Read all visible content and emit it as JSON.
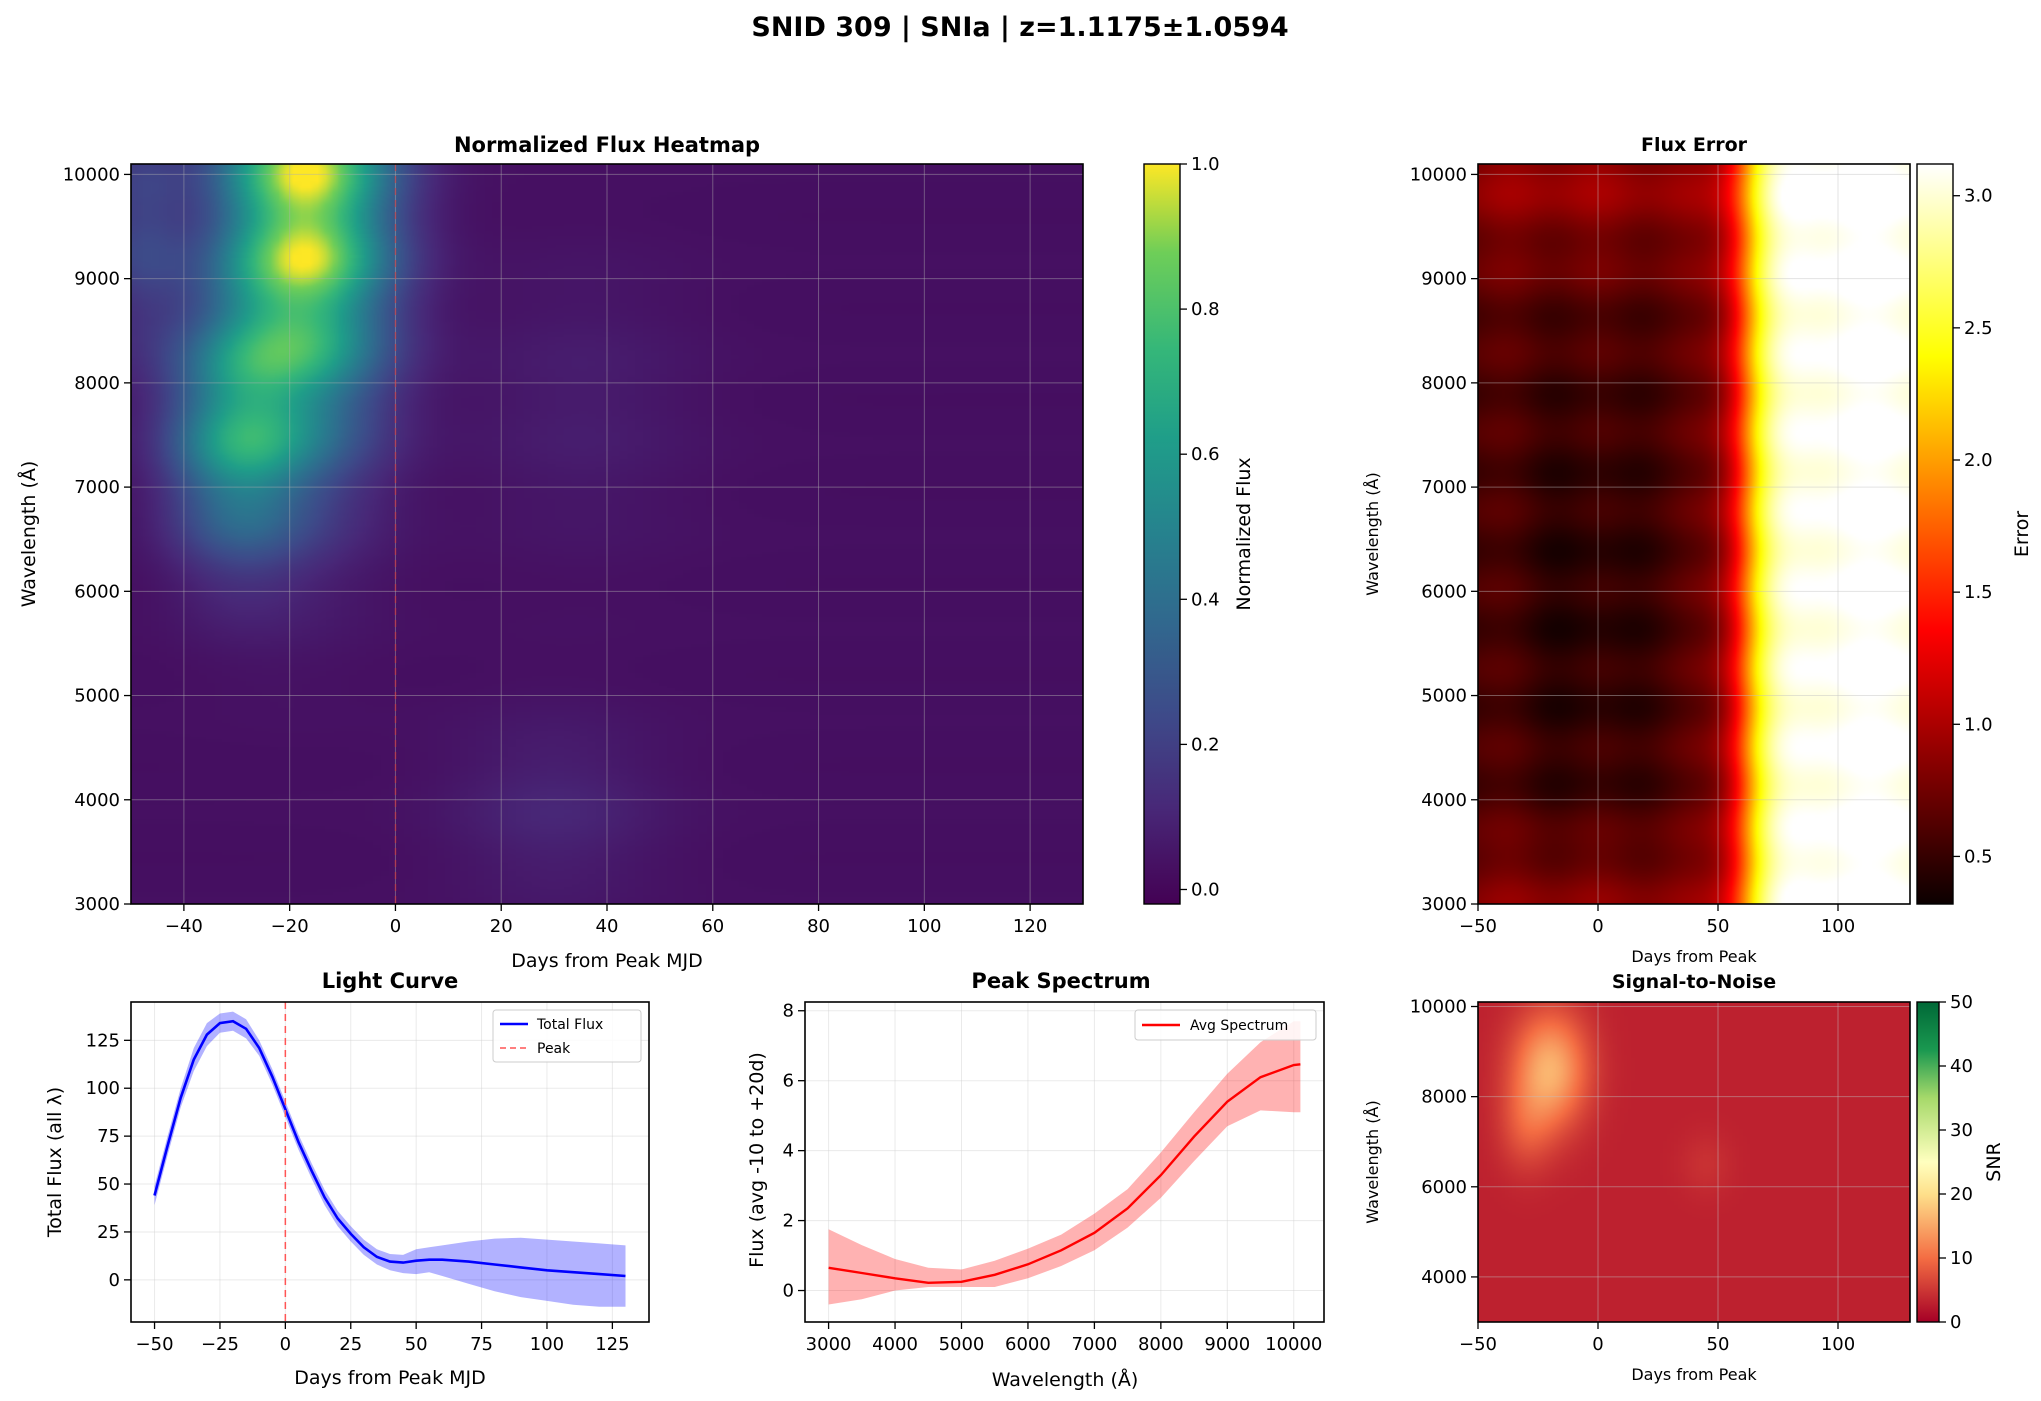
{
  "figure": {
    "suptitle": "SNID 309 | SNIa | z=1.1175±1.0594"
  },
  "chart_data": [
    {
      "id": "heatmap",
      "type": "heatmap",
      "title": "Normalized Flux Heatmap",
      "xlabel": "Days from Peak MJD",
      "ylabel": "Wavelength (Å)",
      "xlim": [
        -50,
        130
      ],
      "ylim": [
        3000,
        10100
      ],
      "xticks": [
        "−40",
        "−20",
        "0",
        "20",
        "40",
        "60",
        "80",
        "100",
        "120"
      ],
      "yticks": [
        "3000",
        "4000",
        "5000",
        "6000",
        "7000",
        "8000",
        "9000",
        "10000"
      ],
      "colormap": "viridis",
      "colorbar": {
        "label": "Normalized Flux",
        "range": [
          -0.02,
          1.0
        ],
        "ticks": [
          "0.0",
          "0.2",
          "0.4",
          "0.6",
          "0.8",
          "1.0"
        ]
      },
      "peak_line_x": 0,
      "grid": true,
      "description_values": {
        "max_day": -18,
        "max_wavelength": 9600,
        "max_value": 1.0
      }
    },
    {
      "id": "error",
      "type": "heatmap",
      "title": "Flux Error",
      "xlabel": "Days from Peak",
      "ylabel": "Wavelength (Å)",
      "xlim": [
        -50,
        130
      ],
      "ylim": [
        3000,
        10100
      ],
      "xticks": [
        "−50",
        "0",
        "50",
        "100"
      ],
      "yticks": [
        "3000",
        "4000",
        "5000",
        "6000",
        "7000",
        "8000",
        "9000",
        "10000"
      ],
      "colormap": "hot",
      "colorbar": {
        "label": "Error",
        "range": [
          0.32,
          3.12
        ],
        "ticks": [
          "0.5",
          "1.0",
          "1.5",
          "2.0",
          "2.5",
          "3.0"
        ]
      },
      "grid": true
    },
    {
      "id": "lightcurve",
      "type": "line",
      "title": "Light Curve",
      "xlabel": "Days from Peak MJD",
      "ylabel": "Total Flux (all λ)",
      "xlim": [
        -59,
        139
      ],
      "ylim": [
        -22,
        145
      ],
      "xticks": [
        "−50",
        "−25",
        "0",
        "25",
        "50",
        "75",
        "100",
        "125"
      ],
      "yticks": [
        "0",
        "25",
        "50",
        "75",
        "100",
        "125"
      ],
      "legend_position": "upper right",
      "grid": true,
      "series": [
        {
          "name": "Total Flux",
          "color": "#0000ff",
          "x": [
            -50,
            -45,
            -40,
            -35,
            -30,
            -25,
            -20,
            -15,
            -10,
            -5,
            0,
            5,
            10,
            15,
            20,
            25,
            30,
            35,
            40,
            45,
            50,
            55,
            60,
            70,
            80,
            90,
            100,
            110,
            120,
            130
          ],
          "y": [
            44,
            70,
            95,
            115,
            128,
            134,
            135,
            131,
            121,
            106,
            89,
            72,
            57,
            43,
            32,
            24,
            17,
            12,
            9.5,
            9,
            10,
            10.5,
            10.5,
            9.5,
            8,
            6.5,
            5,
            4,
            3,
            2
          ],
          "band_lower": [
            39,
            65,
            90,
            109,
            122,
            129,
            130,
            126,
            117,
            102,
            85,
            68,
            53,
            39,
            28,
            20,
            13,
            8,
            5,
            3.5,
            3,
            4,
            2,
            -2,
            -6,
            -9,
            -11,
            -13,
            -14,
            -14
          ],
          "band_upper": [
            49,
            75,
            100,
            121,
            134,
            139,
            140,
            136,
            125,
            110,
            93,
            76,
            61,
            47,
            36,
            28,
            21,
            16,
            13.5,
            13,
            16,
            17,
            18,
            20,
            21.5,
            22,
            21,
            20,
            19,
            18
          ]
        }
      ],
      "peak_line": {
        "name": "Peak",
        "x": 0,
        "color": "#ff5555"
      }
    },
    {
      "id": "spectrum",
      "type": "line",
      "title": "Peak Spectrum",
      "xlabel": "Wavelength (Å)",
      "ylabel": "Flux (avg -10 to +20d)",
      "xlim": [
        2645,
        10455
      ],
      "ylim": [
        -0.9,
        8.25
      ],
      "xticks": [
        "3000",
        "4000",
        "5000",
        "6000",
        "7000",
        "8000",
        "9000",
        "10000"
      ],
      "yticks": [
        "0",
        "2",
        "4",
        "6",
        "8"
      ],
      "legend_position": "upper right",
      "grid": true,
      "series": [
        {
          "name": "Avg Spectrum",
          "color": "#ff0000",
          "x": [
            3000,
            3500,
            4000,
            4500,
            5000,
            5500,
            6000,
            6500,
            7000,
            7500,
            8000,
            8500,
            9000,
            9500,
            10000,
            10100
          ],
          "y": [
            0.65,
            0.5,
            0.35,
            0.22,
            0.25,
            0.45,
            0.75,
            1.15,
            1.65,
            2.35,
            3.3,
            4.4,
            5.4,
            6.1,
            6.45,
            6.47
          ],
          "band_lower": [
            -0.4,
            -0.25,
            0.0,
            0.1,
            0.1,
            0.1,
            0.35,
            0.7,
            1.15,
            1.8,
            2.65,
            3.7,
            4.7,
            5.15,
            5.1,
            5.1
          ],
          "band_upper": [
            1.75,
            1.3,
            0.9,
            0.65,
            0.6,
            0.85,
            1.2,
            1.6,
            2.2,
            2.9,
            3.95,
            5.1,
            6.2,
            7.1,
            7.7,
            7.7
          ]
        }
      ]
    },
    {
      "id": "snr",
      "type": "heatmap",
      "title": "Signal-to-Noise",
      "xlabel": "Days from Peak",
      "ylabel": "Wavelength (Å)",
      "xlim": [
        -50,
        130
      ],
      "ylim": [
        3000,
        10100
      ],
      "xticks": [
        "−50",
        "0",
        "50",
        "100"
      ],
      "yticks": [
        "4000",
        "6000",
        "8000",
        "10000"
      ],
      "colormap": "RdYlGn",
      "colorbar": {
        "label": "SNR",
        "range": [
          0,
          50
        ],
        "ticks": [
          "0",
          "10",
          "20",
          "30",
          "40",
          "50"
        ]
      },
      "grid": true
    }
  ]
}
